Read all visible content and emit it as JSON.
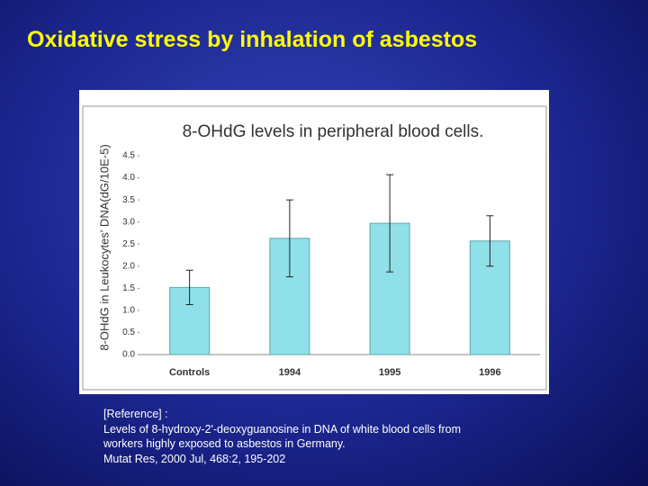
{
  "title": "Oxidative stress by inhalation of asbestos",
  "chart_data": {
    "type": "bar",
    "title": "8-OHdG levels in peripheral blood cells.",
    "y_label": "8-OHdG in Leukocytes' DNA(dG/10E-5)",
    "categories": [
      "Controls",
      "1994",
      "1995",
      "1996"
    ],
    "values": [
      1.52,
      2.63,
      2.97,
      2.57
    ],
    "errors": [
      0.39,
      0.87,
      1.1,
      0.57
    ],
    "color": "#8fe0e8",
    "ylim": [
      0,
      4.5
    ],
    "yticks": [
      {
        "value": 0,
        "label": "0.0"
      },
      {
        "value": 0.5,
        "label": "0.5"
      },
      {
        "value": 1,
        "label": "1.0"
      },
      {
        "value": 1.5,
        "label": "1.5"
      },
      {
        "value": 2,
        "label": "2.0"
      },
      {
        "value": 2.5,
        "label": "2.5"
      },
      {
        "value": 3,
        "label": "3.0"
      },
      {
        "value": 3.5,
        "label": "3.5"
      },
      {
        "value": 4,
        "label": "4.0"
      },
      {
        "value": 4.5,
        "label": "4.5"
      }
    ]
  },
  "reference": [
    "[Reference] :",
    "Levels of 8-hydroxy-2'-deoxyguanosine in DNA of white blood cells from",
    "workers highly exposed to asbestos in Germany.",
    "Mutat Res, 2000 Jul, 468:2, 195-202"
  ]
}
